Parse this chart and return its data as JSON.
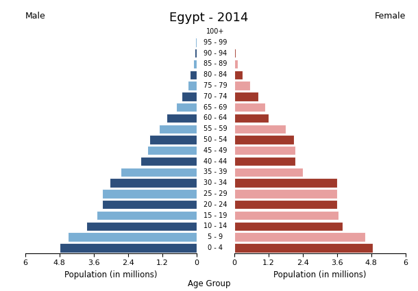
{
  "title": "Egypt - 2014",
  "age_groups_bottom_to_top": [
    "0 - 4",
    "5 - 9",
    "10 - 14",
    "15 - 19",
    "20 - 24",
    "25 - 29",
    "30 - 34",
    "35 - 39",
    "40 - 44",
    "45 - 49",
    "50 - 54",
    "55 - 59",
    "60 - 64",
    "65 - 69",
    "70 - 74",
    "75 - 79",
    "80 - 84",
    "85 - 89",
    "90 - 94",
    "95 - 99",
    "100+"
  ],
  "male_values_bottom_to_top": [
    4.8,
    4.5,
    3.85,
    3.5,
    3.3,
    3.3,
    3.05,
    2.65,
    1.95,
    1.72,
    1.65,
    1.3,
    1.05,
    0.72,
    0.52,
    0.3,
    0.22,
    0.12,
    0.07,
    0.04,
    0.02
  ],
  "female_values_bottom_to_top": [
    4.85,
    4.6,
    3.8,
    3.65,
    3.6,
    3.6,
    3.6,
    2.4,
    2.15,
    2.15,
    2.1,
    1.8,
    1.2,
    1.1,
    0.85,
    0.55,
    0.3,
    0.13,
    0.05,
    0.02,
    0.01
  ],
  "male_colors_dark": "#2d4f7c",
  "male_colors_light": "#7bafd4",
  "female_colors_dark": "#a0392b",
  "female_colors_light": "#e8a0a0",
  "xlabel_left": "Population (in millions)",
  "xlabel_center": "Age Group",
  "xlabel_right": "Population (in millions)",
  "label_male": "Male",
  "label_female": "Female",
  "xlim": 6.0,
  "xticks": [
    0,
    1.2,
    2.4,
    3.6,
    4.8,
    6.0
  ],
  "xtick_labels": [
    "0",
    "1.2",
    "2.4",
    "3.6",
    "4.8",
    "6"
  ],
  "xtick_labels_left": [
    "6",
    "4.8",
    "3.6",
    "2.4",
    "1.2",
    "0"
  ],
  "background_color": "#ffffff",
  "bar_edgecolor": "#ffffff",
  "bar_linewidth": 0.8
}
